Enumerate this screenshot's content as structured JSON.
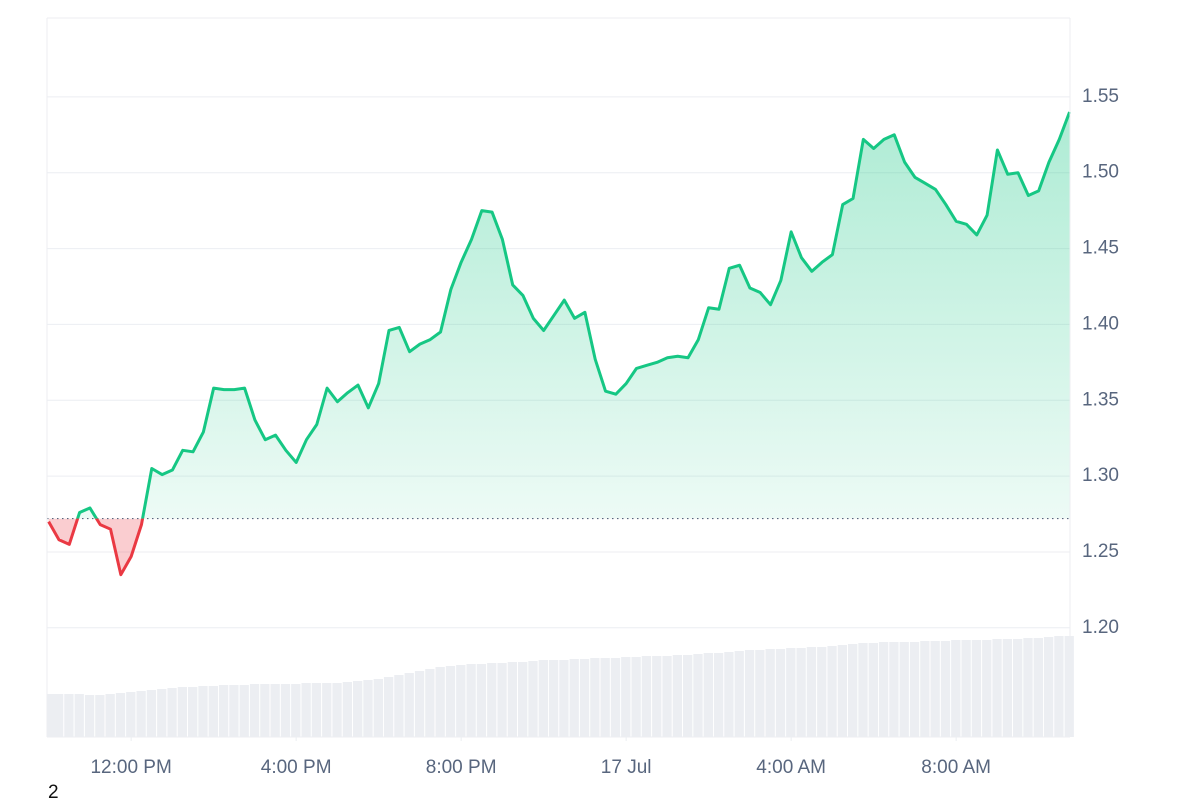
{
  "chart_data": {
    "type": "line",
    "series": [
      {
        "name": "Price",
        "color": "#16c784",
        "down_color": "#ea3943",
        "values": [
          1.27,
          1.258,
          1.255,
          1.276,
          1.279,
          1.268,
          1.265,
          1.235,
          1.247,
          1.268,
          1.305,
          1.301,
          1.304,
          1.317,
          1.316,
          1.329,
          1.358,
          1.357,
          1.357,
          1.358,
          1.337,
          1.324,
          1.327,
          1.317,
          1.309,
          1.324,
          1.334,
          1.358,
          1.349,
          1.355,
          1.36,
          1.345,
          1.361,
          1.396,
          1.398,
          1.382,
          1.387,
          1.39,
          1.395,
          1.423,
          1.441,
          1.456,
          1.475,
          1.474,
          1.456,
          1.426,
          1.419,
          1.404,
          1.396,
          1.406,
          1.416,
          1.404,
          1.408,
          1.377,
          1.356,
          1.354,
          1.361,
          1.371,
          1.373,
          1.375,
          1.378,
          1.379,
          1.378,
          1.39,
          1.411,
          1.41,
          1.437,
          1.439,
          1.424,
          1.421,
          1.413,
          1.429,
          1.461,
          1.444,
          1.435,
          1.441,
          1.446,
          1.479,
          1.483,
          1.522,
          1.516,
          1.522,
          1.525,
          1.507,
          1.497,
          1.493,
          1.489,
          1.479,
          1.468,
          1.466,
          1.459,
          1.472,
          1.515,
          1.499,
          1.5,
          1.485,
          1.488,
          1.507,
          1.522,
          1.54
        ]
      }
    ],
    "x": [
      -2,
      -1.75,
      -1.5,
      -1.25,
      -1,
      -0.75,
      -0.5,
      -0.25,
      0,
      0.25,
      0.5,
      0.75,
      1,
      1.25,
      1.5,
      1.75,
      2,
      2.25,
      2.5,
      2.75,
      3,
      3.25,
      3.5,
      3.75,
      4,
      4.25,
      4.5,
      4.75,
      5,
      5.25,
      5.5,
      5.75,
      6,
      6.25,
      6.5,
      6.75,
      7,
      7.25,
      7.5,
      7.75,
      8,
      8.25,
      8.5,
      8.75,
      9,
      9.25,
      9.5,
      9.75,
      10,
      10.25,
      10.5,
      10.75,
      11,
      11.25,
      11.5,
      11.75,
      12,
      12.25,
      12.5,
      12.75,
      13,
      13.25,
      13.5,
      13.75,
      14,
      14.25,
      14.5,
      14.75,
      15,
      15.25,
      15.5,
      15.75,
      16,
      16.25,
      16.5,
      16.75,
      17,
      17.25,
      17.5,
      17.75,
      18,
      18.25,
      18.5,
      18.75,
      19,
      19.25,
      19.5,
      19.75,
      20,
      20.25,
      20.5,
      20.75,
      21,
      21.25,
      21.5,
      21.75,
      22,
      22.25,
      22.5,
      22.75
    ],
    "volume": [
      43,
      43,
      43,
      43,
      42,
      42,
      43,
      44,
      45,
      46,
      47,
      48,
      49,
      50,
      50,
      51,
      51,
      52,
      52,
      52,
      53,
      53,
      53,
      53,
      53,
      54,
      54,
      54,
      54,
      55,
      56,
      57,
      58,
      60,
      62,
      64,
      66,
      68,
      70,
      71,
      72,
      73,
      73,
      74,
      74,
      75,
      75,
      76,
      77,
      77,
      77,
      78,
      78,
      79,
      79,
      79,
      80,
      80,
      81,
      81,
      81,
      82,
      82,
      83,
      84,
      84,
      85,
      86,
      87,
      87,
      88,
      88,
      89,
      89,
      90,
      90,
      91,
      92,
      93,
      94,
      94,
      95,
      95,
      95,
      95,
      96,
      96,
      96,
      97,
      97,
      97,
      97,
      98,
      98,
      98,
      99,
      99,
      100,
      101,
      101
    ],
    "volume_color": "#eceef2",
    "baseline": 1.272,
    "xlim": [
      -2.04,
      22.76
    ],
    "xticks": [
      {
        "value": 0,
        "label": "12:00 PM"
      },
      {
        "value": 4,
        "label": "4:00 PM"
      },
      {
        "value": 8,
        "label": "8:00 PM"
      },
      {
        "value": 12,
        "label": "17 Jul"
      },
      {
        "value": 16,
        "label": "4:00 AM"
      },
      {
        "value": 20,
        "label": "8:00 AM"
      }
    ],
    "ylim": [
      1.128,
      1.602
    ],
    "yticks": [
      {
        "value": 1.2,
        "label": "1.20"
      },
      1.25,
      {
        "value": 1.3,
        "label": "1.30"
      },
      1.35,
      {
        "value": 1.4,
        "label": "1.40"
      },
      1.45,
      {
        "value": 1.5,
        "label": "1.50"
      },
      1.55
    ],
    "grid": true,
    "footnote": "2"
  }
}
